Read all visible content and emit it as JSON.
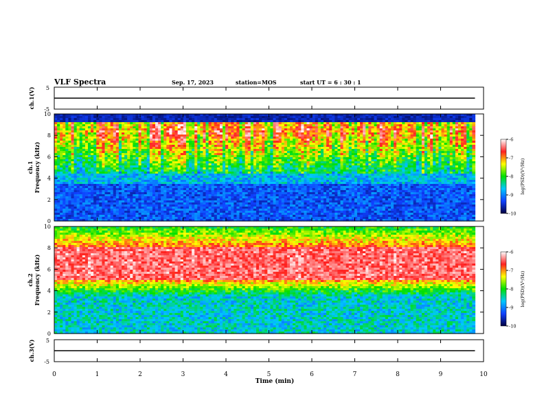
{
  "header": {
    "title": "VLF Spectra",
    "date": "Sep. 17, 2023",
    "station": "station=MOS",
    "start_ut": "start  UT =   6 : 30 : 1"
  },
  "colorbar": {
    "label": "log(PSD)(V²/Hz)",
    "ticks": [
      "-6",
      "-7",
      "-8",
      "-9",
      "-10"
    ],
    "colors": [
      "#ffffff",
      "#ff2020",
      "#ffff00",
      "#00e000",
      "#00c8ff",
      "#1040ff",
      "#000040"
    ]
  },
  "chart_data": [
    {
      "type": "line",
      "name": "ch1-voltage",
      "ylabel": "ch.1(V)",
      "ylim": [
        -5,
        5
      ],
      "yticks": [
        "5",
        "-5"
      ],
      "x": [
        0,
        9.8
      ],
      "values": [
        0,
        0
      ]
    },
    {
      "type": "heatmap",
      "name": "ch1-spectrogram",
      "ylabel": "ch.1\nFrequency (kHz)",
      "ylim": [
        0,
        10
      ],
      "yticks": [
        "10",
        "8",
        "6",
        "4",
        "2",
        "0"
      ],
      "x_range_min": [
        0,
        9.8
      ],
      "upper_band_top_khz": 9.2,
      "upper_band_bottom_khz": 4.5,
      "lower_noise_band_khz": [
        0,
        3.5
      ]
    },
    {
      "type": "heatmap",
      "name": "ch2-spectrogram",
      "ylabel": "ch.2\nFrequency (kHz)",
      "ylim": [
        0,
        10
      ],
      "yticks": [
        "10",
        "8",
        "6",
        "4",
        "2",
        "0"
      ],
      "x_range_min": [
        0,
        9.8
      ],
      "strong_band_khz": [
        5.0,
        8.0
      ],
      "lower_noise_band_khz": [
        0,
        3.5
      ]
    },
    {
      "type": "line",
      "name": "ch3-voltage",
      "ylabel": "ch.3(V)",
      "ylim": [
        -5,
        5
      ],
      "yticks": [
        "5",
        "-5"
      ],
      "x": [
        0,
        9.8
      ],
      "values": [
        0,
        0
      ]
    }
  ],
  "x_axis": {
    "label": "Time  (min)",
    "ticks": [
      "0",
      "1",
      "2",
      "3",
      "4",
      "5",
      "6",
      "7",
      "8",
      "9",
      "10"
    ],
    "xlim": [
      0,
      10
    ]
  }
}
